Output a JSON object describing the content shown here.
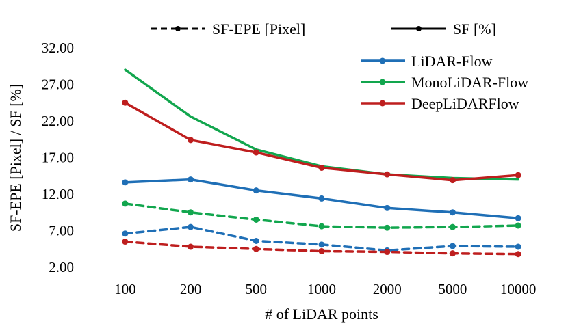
{
  "chart_data": {
    "type": "line",
    "title": "",
    "xlabel": "# of LiDAR points",
    "ylabel": "SF-EPE [Pixel] / SF [%]",
    "categories": [
      "100",
      "200",
      "500",
      "1000",
      "2000",
      "5000",
      "10000"
    ],
    "y_ticks": [
      "2.00",
      "7.00",
      "12.00",
      "17.00",
      "22.00",
      "27.00",
      "32.00"
    ],
    "ylim": [
      2,
      32
    ],
    "style_legend": [
      {
        "label": "SF-EPE [Pixel]",
        "dash": "dashed"
      },
      {
        "label": "SF [%]",
        "dash": "solid"
      }
    ],
    "color_legend": [
      {
        "label": "LiDAR-Flow",
        "color": "#1F6FB6"
      },
      {
        "label": "MonoLiDAR-Flow",
        "color": "#12A64E"
      },
      {
        "label": "DeepLiDARFlow",
        "color": "#BE1E1E"
      }
    ],
    "series": [
      {
        "name": "LiDAR-Flow SF [%]",
        "method": "LiDAR-Flow",
        "metric": "SF [%]",
        "color": "#1F6FB6",
        "dash": "solid",
        "markers": true,
        "values": [
          13.6,
          14.0,
          12.5,
          11.4,
          10.1,
          9.5,
          8.7
        ]
      },
      {
        "name": "MonoLiDAR-Flow SF [%]",
        "method": "MonoLiDAR-Flow",
        "metric": "SF [%]",
        "color": "#12A64E",
        "dash": "solid",
        "markers": false,
        "values": [
          29.0,
          22.6,
          18.1,
          15.8,
          14.7,
          14.2,
          14.0
        ]
      },
      {
        "name": "DeepLiDARFlow SF [%]",
        "method": "DeepLiDARFlow",
        "metric": "SF [%]",
        "color": "#BE1E1E",
        "dash": "solid",
        "markers": true,
        "values": [
          24.5,
          19.4,
          17.7,
          15.6,
          14.7,
          13.9,
          14.6
        ]
      },
      {
        "name": "LiDAR-Flow SF-EPE [Pixel]",
        "method": "LiDAR-Flow",
        "metric": "SF-EPE [Pixel]",
        "color": "#1F6FB6",
        "dash": "dashed",
        "markers": true,
        "values": [
          6.6,
          7.5,
          5.6,
          5.1,
          4.3,
          4.9,
          4.8
        ]
      },
      {
        "name": "MonoLiDAR-Flow SF-EPE [Pixel]",
        "method": "MonoLiDAR-Flow",
        "metric": "SF-EPE [Pixel]",
        "color": "#12A64E",
        "dash": "dashed",
        "markers": true,
        "values": [
          10.7,
          9.5,
          8.5,
          7.6,
          7.4,
          7.5,
          7.7
        ]
      },
      {
        "name": "DeepLiDARFlow SF-EPE [Pixel]",
        "method": "DeepLiDARFlow",
        "metric": "SF-EPE [Pixel]",
        "color": "#BE1E1E",
        "dash": "dashed",
        "markers": true,
        "values": [
          5.5,
          4.8,
          4.5,
          4.2,
          4.1,
          3.9,
          3.8
        ]
      }
    ]
  }
}
